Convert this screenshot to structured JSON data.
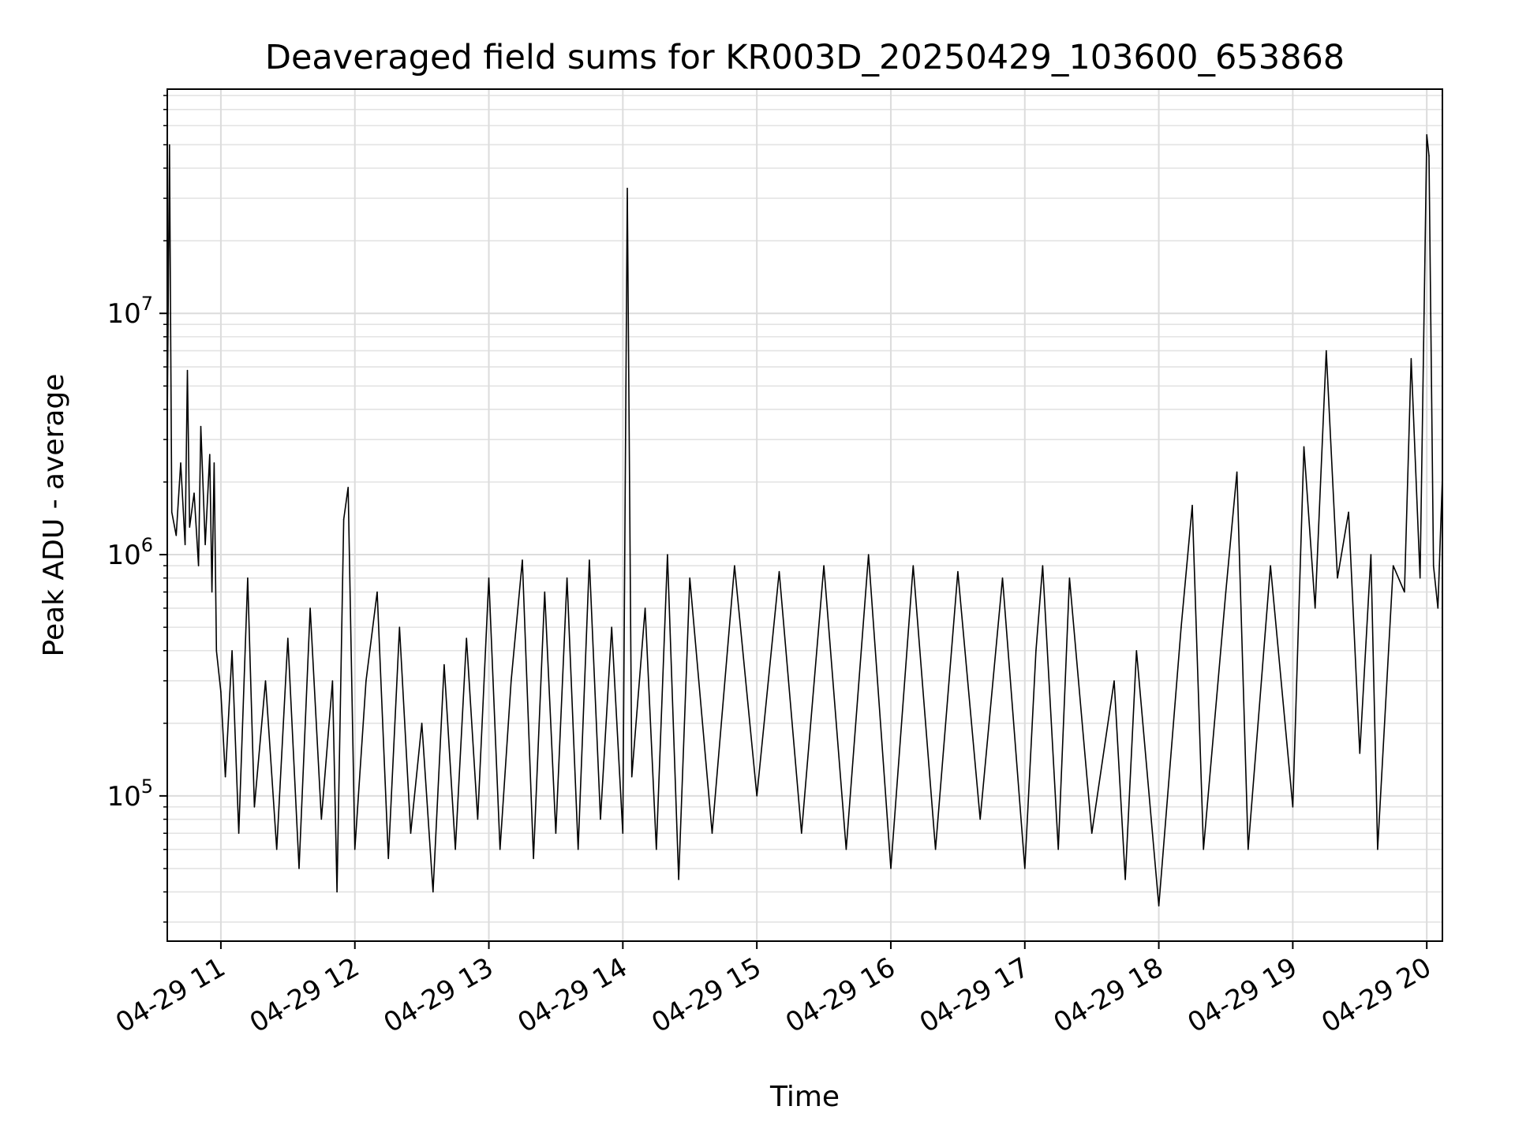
{
  "chart_data": {
    "type": "line",
    "title": "Deaveraged field sums for KR003D_20250429_103600_653868",
    "xlabel": "Time",
    "ylabel": "Peak ADU - average",
    "yscale": "log",
    "ylim": [
      25000,
      85000000
    ],
    "xlim": [
      "2025-04-29 10:36",
      "2025-04-29 20:07"
    ],
    "grid": true,
    "line_color": "#000000",
    "x_ticks": [
      {
        "value": "2025-04-29 11:00",
        "label": "04-29 11"
      },
      {
        "value": "2025-04-29 12:00",
        "label": "04-29 12"
      },
      {
        "value": "2025-04-29 13:00",
        "label": "04-29 13"
      },
      {
        "value": "2025-04-29 14:00",
        "label": "04-29 14"
      },
      {
        "value": "2025-04-29 15:00",
        "label": "04-29 15"
      },
      {
        "value": "2025-04-29 16:00",
        "label": "04-29 16"
      },
      {
        "value": "2025-04-29 17:00",
        "label": "04-29 17"
      },
      {
        "value": "2025-04-29 18:00",
        "label": "04-29 18"
      },
      {
        "value": "2025-04-29 19:00",
        "label": "04-29 19"
      },
      {
        "value": "2025-04-29 20:00",
        "label": "04-29 20"
      }
    ],
    "y_ticks": [
      {
        "value": 100000,
        "base": "10",
        "exp": "5"
      },
      {
        "value": 1000000,
        "base": "10",
        "exp": "6"
      },
      {
        "value": 10000000,
        "base": "10",
        "exp": "7"
      }
    ],
    "series": [
      {
        "points": [
          [
            "2025-04-29 10:36",
            3500000
          ],
          [
            "2025-04-29 10:37",
            50000000
          ],
          [
            "2025-04-29 10:38",
            1500000
          ],
          [
            "2025-04-29 10:40",
            1200000
          ],
          [
            "2025-04-29 10:42",
            2400000
          ],
          [
            "2025-04-29 10:44",
            1100000
          ],
          [
            "2025-04-29 10:45",
            5800000
          ],
          [
            "2025-04-29 10:46",
            1300000
          ],
          [
            "2025-04-29 10:48",
            1800000
          ],
          [
            "2025-04-29 10:50",
            900000
          ],
          [
            "2025-04-29 10:51",
            3400000
          ],
          [
            "2025-04-29 10:53",
            1100000
          ],
          [
            "2025-04-29 10:55",
            2600000
          ],
          [
            "2025-04-29 10:56",
            700000
          ],
          [
            "2025-04-29 10:57",
            2400000
          ],
          [
            "2025-04-29 10:58",
            400000
          ],
          [
            "2025-04-29 11:00",
            270000
          ],
          [
            "2025-04-29 11:02",
            120000
          ],
          [
            "2025-04-29 11:05",
            400000
          ],
          [
            "2025-04-29 11:08",
            70000
          ],
          [
            "2025-04-29 11:12",
            800000
          ],
          [
            "2025-04-29 11:15",
            90000
          ],
          [
            "2025-04-29 11:20",
            300000
          ],
          [
            "2025-04-29 11:25",
            60000
          ],
          [
            "2025-04-29 11:30",
            450000
          ],
          [
            "2025-04-29 11:35",
            50000
          ],
          [
            "2025-04-29 11:40",
            600000
          ],
          [
            "2025-04-29 11:45",
            80000
          ],
          [
            "2025-04-29 11:50",
            300000
          ],
          [
            "2025-04-29 11:52",
            40000
          ],
          [
            "2025-04-29 11:55",
            1400000
          ],
          [
            "2025-04-29 11:57",
            1900000
          ],
          [
            "2025-04-29 12:00",
            60000
          ],
          [
            "2025-04-29 12:05",
            300000
          ],
          [
            "2025-04-29 12:10",
            700000
          ],
          [
            "2025-04-29 12:15",
            55000
          ],
          [
            "2025-04-29 12:20",
            500000
          ],
          [
            "2025-04-29 12:25",
            70000
          ],
          [
            "2025-04-29 12:30",
            200000
          ],
          [
            "2025-04-29 12:35",
            40000
          ],
          [
            "2025-04-29 12:40",
            350000
          ],
          [
            "2025-04-29 12:45",
            60000
          ],
          [
            "2025-04-29 12:50",
            450000
          ],
          [
            "2025-04-29 12:55",
            80000
          ],
          [
            "2025-04-29 13:00",
            800000
          ],
          [
            "2025-04-29 13:05",
            60000
          ],
          [
            "2025-04-29 13:10",
            300000
          ],
          [
            "2025-04-29 13:15",
            950000
          ],
          [
            "2025-04-29 13:20",
            55000
          ],
          [
            "2025-04-29 13:25",
            700000
          ],
          [
            "2025-04-29 13:30",
            70000
          ],
          [
            "2025-04-29 13:35",
            800000
          ],
          [
            "2025-04-29 13:40",
            60000
          ],
          [
            "2025-04-29 13:45",
            950000
          ],
          [
            "2025-04-29 13:50",
            80000
          ],
          [
            "2025-04-29 13:55",
            500000
          ],
          [
            "2025-04-29 14:00",
            70000
          ],
          [
            "2025-04-29 14:02",
            33000000
          ],
          [
            "2025-04-29 14:04",
            120000
          ],
          [
            "2025-04-29 14:10",
            600000
          ],
          [
            "2025-04-29 14:15",
            60000
          ],
          [
            "2025-04-29 14:20",
            1000000
          ],
          [
            "2025-04-29 14:25",
            45000
          ],
          [
            "2025-04-29 14:30",
            800000
          ],
          [
            "2025-04-29 14:40",
            70000
          ],
          [
            "2025-04-29 14:50",
            900000
          ],
          [
            "2025-04-29 15:00",
            100000
          ],
          [
            "2025-04-29 15:10",
            850000
          ],
          [
            "2025-04-29 15:20",
            70000
          ],
          [
            "2025-04-29 15:30",
            900000
          ],
          [
            "2025-04-29 15:40",
            60000
          ],
          [
            "2025-04-29 15:50",
            1000000
          ],
          [
            "2025-04-29 16:00",
            50000
          ],
          [
            "2025-04-29 16:10",
            900000
          ],
          [
            "2025-04-29 16:20",
            60000
          ],
          [
            "2025-04-29 16:30",
            850000
          ],
          [
            "2025-04-29 16:40",
            80000
          ],
          [
            "2025-04-29 16:50",
            800000
          ],
          [
            "2025-04-29 17:00",
            50000
          ],
          [
            "2025-04-29 17:05",
            400000
          ],
          [
            "2025-04-29 17:08",
            900000
          ],
          [
            "2025-04-29 17:15",
            60000
          ],
          [
            "2025-04-29 17:20",
            800000
          ],
          [
            "2025-04-29 17:30",
            70000
          ],
          [
            "2025-04-29 17:40",
            300000
          ],
          [
            "2025-04-29 17:45",
            45000
          ],
          [
            "2025-04-29 17:50",
            400000
          ],
          [
            "2025-04-29 18:00",
            35000
          ],
          [
            "2025-04-29 18:10",
            500000
          ],
          [
            "2025-04-29 18:15",
            1600000
          ],
          [
            "2025-04-29 18:20",
            60000
          ],
          [
            "2025-04-29 18:30",
            700000
          ],
          [
            "2025-04-29 18:35",
            2200000
          ],
          [
            "2025-04-29 18:40",
            60000
          ],
          [
            "2025-04-29 18:50",
            900000
          ],
          [
            "2025-04-29 19:00",
            90000
          ],
          [
            "2025-04-29 19:05",
            2800000
          ],
          [
            "2025-04-29 19:10",
            600000
          ],
          [
            "2025-04-29 19:15",
            7000000
          ],
          [
            "2025-04-29 19:20",
            800000
          ],
          [
            "2025-04-29 19:25",
            1500000
          ],
          [
            "2025-04-29 19:30",
            150000
          ],
          [
            "2025-04-29 19:35",
            1000000
          ],
          [
            "2025-04-29 19:38",
            60000
          ],
          [
            "2025-04-29 19:45",
            900000
          ],
          [
            "2025-04-29 19:50",
            700000
          ],
          [
            "2025-04-29 19:53",
            6500000
          ],
          [
            "2025-04-29 19:57",
            800000
          ],
          [
            "2025-04-29 20:00",
            55000000
          ],
          [
            "2025-04-29 20:01",
            45000000
          ],
          [
            "2025-04-29 20:03",
            900000
          ],
          [
            "2025-04-29 20:05",
            600000
          ],
          [
            "2025-04-29 20:07",
            2100000
          ]
        ]
      }
    ]
  }
}
